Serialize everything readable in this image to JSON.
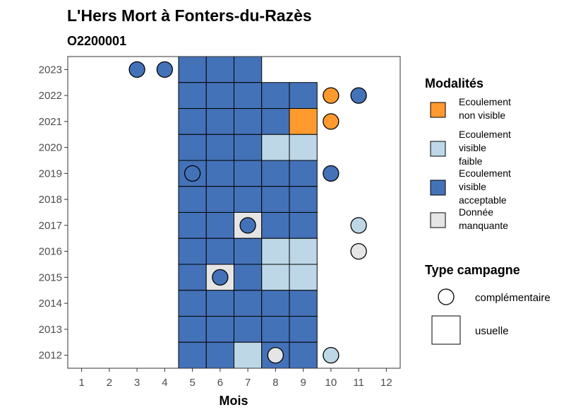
{
  "chart_data": {
    "type": "heatmap",
    "title": "L'Hers Mort à Fonters-du-Razès",
    "subtitle": "O2200001",
    "xlabel": "Mois",
    "ylabel": "",
    "x_ticks": [
      "1",
      "2",
      "3",
      "4",
      "5",
      "6",
      "7",
      "8",
      "9",
      "10",
      "11",
      "12"
    ],
    "y_ticks": [
      "2012",
      "2013",
      "2014",
      "2015",
      "2016",
      "2017",
      "2018",
      "2019",
      "2020",
      "2021",
      "2022",
      "2023"
    ],
    "xlim": [
      0.5,
      12.5
    ],
    "ylim": [
      2011.5,
      2023.5
    ],
    "grid": false,
    "legend_position": "right",
    "categories": {
      "EVA": {
        "label_lines": [
          "Ecoulement",
          "visible",
          "acceptable"
        ],
        "color": "#4472B8"
      },
      "EVF": {
        "label_lines": [
          "Ecoulement",
          "visible",
          "faible"
        ],
        "color": "#BDD7E7"
      },
      "ENV": {
        "label_lines": [
          "Ecoulement",
          "non visible"
        ],
        "color": "#FF9A2E"
      },
      "DM": {
        "label_lines": [
          "Donnée",
          "manquante"
        ],
        "color": "#E5E5E5"
      }
    },
    "legend_modalites": {
      "title": "Modalités",
      "order": [
        "ENV",
        "EVF",
        "EVA",
        "DM"
      ]
    },
    "legend_campagne": {
      "title": "Type campagne",
      "items": [
        {
          "shape": "circle",
          "label": "complémentaire"
        },
        {
          "shape": "square",
          "label": "usuelle"
        }
      ]
    },
    "usuelle": [
      {
        "year": 2023,
        "month": 5,
        "value": "EVA"
      },
      {
        "year": 2023,
        "month": 6,
        "value": "EVA"
      },
      {
        "year": 2023,
        "month": 7,
        "value": "EVA"
      },
      {
        "year": 2022,
        "month": 5,
        "value": "EVA"
      },
      {
        "year": 2022,
        "month": 6,
        "value": "EVA"
      },
      {
        "year": 2022,
        "month": 7,
        "value": "EVA"
      },
      {
        "year": 2022,
        "month": 8,
        "value": "EVA"
      },
      {
        "year": 2022,
        "month": 9,
        "value": "EVA"
      },
      {
        "year": 2021,
        "month": 5,
        "value": "EVA"
      },
      {
        "year": 2021,
        "month": 6,
        "value": "EVA"
      },
      {
        "year": 2021,
        "month": 7,
        "value": "EVA"
      },
      {
        "year": 2021,
        "month": 8,
        "value": "EVA"
      },
      {
        "year": 2021,
        "month": 9,
        "value": "ENV"
      },
      {
        "year": 2020,
        "month": 5,
        "value": "EVA"
      },
      {
        "year": 2020,
        "month": 6,
        "value": "EVA"
      },
      {
        "year": 2020,
        "month": 7,
        "value": "EVA"
      },
      {
        "year": 2020,
        "month": 8,
        "value": "EVF"
      },
      {
        "year": 2020,
        "month": 9,
        "value": "EVF"
      },
      {
        "year": 2019,
        "month": 5,
        "value": "EVA"
      },
      {
        "year": 2019,
        "month": 6,
        "value": "EVA"
      },
      {
        "year": 2019,
        "month": 7,
        "value": "EVA"
      },
      {
        "year": 2019,
        "month": 8,
        "value": "EVA"
      },
      {
        "year": 2019,
        "month": 9,
        "value": "EVA"
      },
      {
        "year": 2018,
        "month": 5,
        "value": "EVA"
      },
      {
        "year": 2018,
        "month": 6,
        "value": "EVA"
      },
      {
        "year": 2018,
        "month": 7,
        "value": "EVA"
      },
      {
        "year": 2018,
        "month": 8,
        "value": "EVA"
      },
      {
        "year": 2018,
        "month": 9,
        "value": "EVA"
      },
      {
        "year": 2017,
        "month": 5,
        "value": "EVA"
      },
      {
        "year": 2017,
        "month": 6,
        "value": "EVA"
      },
      {
        "year": 2017,
        "month": 7,
        "value": "DM"
      },
      {
        "year": 2017,
        "month": 8,
        "value": "EVA"
      },
      {
        "year": 2017,
        "month": 9,
        "value": "EVA"
      },
      {
        "year": 2016,
        "month": 5,
        "value": "EVA"
      },
      {
        "year": 2016,
        "month": 6,
        "value": "EVA"
      },
      {
        "year": 2016,
        "month": 7,
        "value": "EVA"
      },
      {
        "year": 2016,
        "month": 8,
        "value": "EVF"
      },
      {
        "year": 2016,
        "month": 9,
        "value": "EVF"
      },
      {
        "year": 2015,
        "month": 5,
        "value": "EVA"
      },
      {
        "year": 2015,
        "month": 6,
        "value": "DM"
      },
      {
        "year": 2015,
        "month": 7,
        "value": "EVA"
      },
      {
        "year": 2015,
        "month": 8,
        "value": "EVF"
      },
      {
        "year": 2015,
        "month": 9,
        "value": "EVF"
      },
      {
        "year": 2014,
        "month": 5,
        "value": "EVA"
      },
      {
        "year": 2014,
        "month": 6,
        "value": "EVA"
      },
      {
        "year": 2014,
        "month": 7,
        "value": "EVA"
      },
      {
        "year": 2014,
        "month": 8,
        "value": "EVA"
      },
      {
        "year": 2014,
        "month": 9,
        "value": "EVA"
      },
      {
        "year": 2013,
        "month": 5,
        "value": "EVA"
      },
      {
        "year": 2013,
        "month": 6,
        "value": "EVA"
      },
      {
        "year": 2013,
        "month": 7,
        "value": "EVA"
      },
      {
        "year": 2013,
        "month": 8,
        "value": "EVA"
      },
      {
        "year": 2013,
        "month": 9,
        "value": "EVA"
      },
      {
        "year": 2012,
        "month": 5,
        "value": "EVA"
      },
      {
        "year": 2012,
        "month": 6,
        "value": "EVA"
      },
      {
        "year": 2012,
        "month": 7,
        "value": "EVF"
      },
      {
        "year": 2012,
        "month": 8,
        "value": "EVA"
      },
      {
        "year": 2012,
        "month": 9,
        "value": "EVA"
      }
    ],
    "complementaire": [
      {
        "year": 2023,
        "month": 3,
        "value": "EVA"
      },
      {
        "year": 2023,
        "month": 4,
        "value": "EVA"
      },
      {
        "year": 2022,
        "month": 10,
        "value": "ENV"
      },
      {
        "year": 2022,
        "month": 11,
        "value": "EVA"
      },
      {
        "year": 2021,
        "month": 10,
        "value": "ENV"
      },
      {
        "year": 2019,
        "month": 5,
        "value": "EVA"
      },
      {
        "year": 2019,
        "month": 10,
        "value": "EVA"
      },
      {
        "year": 2017,
        "month": 7,
        "value": "EVA"
      },
      {
        "year": 2017,
        "month": 11,
        "value": "EVF"
      },
      {
        "year": 2016,
        "month": 11,
        "value": "DM"
      },
      {
        "year": 2015,
        "month": 6,
        "value": "EVA"
      },
      {
        "year": 2012,
        "month": 8,
        "value": "DM"
      },
      {
        "year": 2012,
        "month": 10,
        "value": "EVF"
      }
    ]
  }
}
